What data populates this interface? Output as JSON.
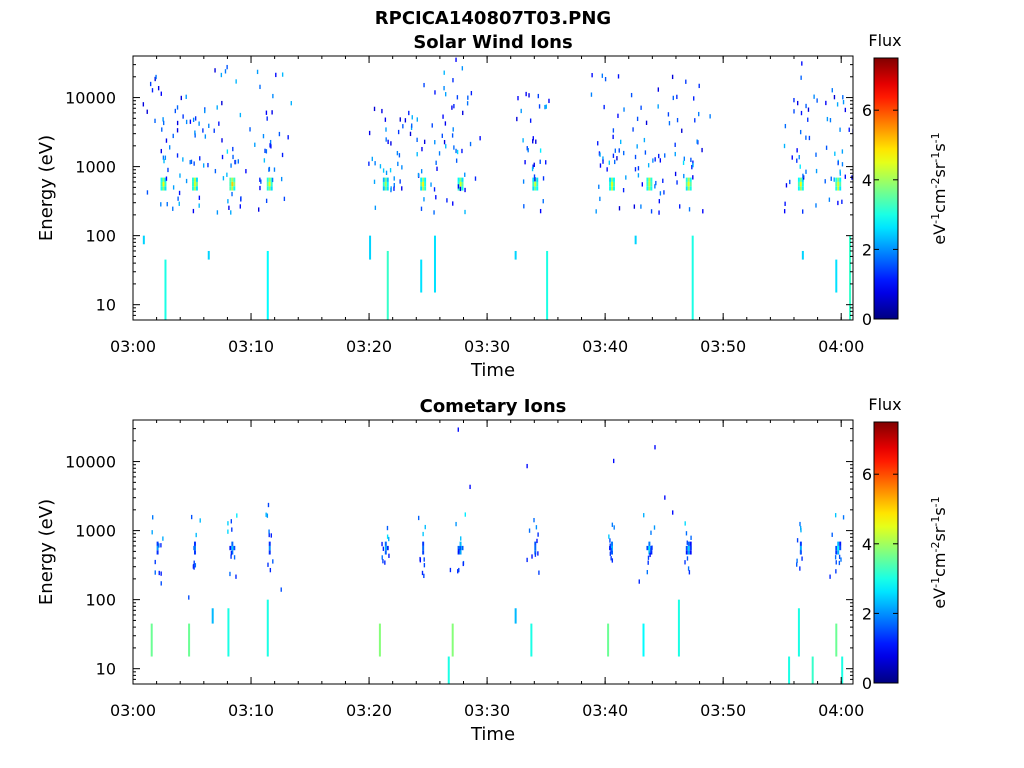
{
  "figure_title": "RPCICA140807T03.PNG",
  "chart_data": [
    {
      "type": "heatmap",
      "title": "Solar Wind Ions",
      "xlabel": "Time",
      "ylabel": "Energy (eV)",
      "x_ticks": [
        "03:00",
        "03:10",
        "03:20",
        "03:30",
        "03:40",
        "03:50",
        "04:00"
      ],
      "xlim": [
        "03:00",
        "04:01"
      ],
      "y_scale": "log",
      "y_ticks": [
        "10",
        "100",
        "1000",
        "10000"
      ],
      "ylim": [
        6,
        40000
      ],
      "colorbar": {
        "title": "Flux",
        "label": "eV-1cm-2sr-1s-1",
        "ticks": [
          "0",
          "2",
          "4",
          "6"
        ],
        "range": [
          0,
          7.5
        ],
        "colormap": "jet"
      },
      "clusters": [
        {
          "t": "03:02:30",
          "flux": 4.5,
          "emax": 20000
        },
        {
          "t": "03:05:10",
          "flux": 4.5,
          "emax": 12000
        },
        {
          "t": "03:08:20",
          "flux": 4.8,
          "emax": 28000
        },
        {
          "t": "03:11:30",
          "flux": 4.5,
          "emax": 22000
        },
        {
          "t": "03:21:20",
          "flux": 4.2,
          "emax": 6500
        },
        {
          "t": "03:24:30",
          "flux": 4.5,
          "emax": 15000
        },
        {
          "t": "03:27:40",
          "flux": 4.5,
          "emax": 36000
        },
        {
          "t": "03:34:00",
          "flux": 4.3,
          "emax": 11000
        },
        {
          "t": "03:40:30",
          "flux": 4.5,
          "emax": 20000
        },
        {
          "t": "03:43:40",
          "flux": 4.5,
          "emax": 38000
        },
        {
          "t": "03:47:00",
          "flux": 4.6,
          "emax": 20000
        },
        {
          "t": "03:56:30",
          "flux": 4.5,
          "emax": 30000
        },
        {
          "t": "03:59:40",
          "flux": 4.6,
          "emax": 12000
        }
      ],
      "low_energy_bursts": [
        {
          "t": "03:00:50",
          "e1": 75,
          "e2": 100,
          "flux": 2.5
        },
        {
          "t": "03:02:40",
          "e1": 6,
          "e2": 45,
          "flux": 3.0
        },
        {
          "t": "03:06:20",
          "e1": 45,
          "e2": 60,
          "flux": 2.5
        },
        {
          "t": "03:11:20",
          "e1": 6,
          "e2": 60,
          "flux": 2.8
        },
        {
          "t": "03:20:00",
          "e1": 45,
          "e2": 100,
          "flux": 2.5
        },
        {
          "t": "03:21:30",
          "e1": 6,
          "e2": 60,
          "flux": 3.2
        },
        {
          "t": "03:24:20",
          "e1": 15,
          "e2": 45,
          "flux": 2.6
        },
        {
          "t": "03:25:30",
          "e1": 15,
          "e2": 100,
          "flux": 2.6
        },
        {
          "t": "03:32:20",
          "e1": 45,
          "e2": 60,
          "flux": 2.5
        },
        {
          "t": "03:35:00",
          "e1": 6,
          "e2": 60,
          "flux": 3.0
        },
        {
          "t": "03:42:30",
          "e1": 75,
          "e2": 100,
          "flux": 2.5
        },
        {
          "t": "03:47:20",
          "e1": 6,
          "e2": 100,
          "flux": 3.0
        },
        {
          "t": "03:56:40",
          "e1": 45,
          "e2": 60,
          "flux": 2.5
        },
        {
          "t": "03:59:30",
          "e1": 15,
          "e2": 45,
          "flux": 2.6
        },
        {
          "t": "04:00:40",
          "e1": 6,
          "e2": 100,
          "flux": 3.2
        }
      ]
    },
    {
      "type": "heatmap",
      "title": "Cometary Ions",
      "xlabel": "Time",
      "ylabel": "Energy (eV)",
      "x_ticks": [
        "03:00",
        "03:10",
        "03:20",
        "03:30",
        "03:40",
        "03:50",
        "04:00"
      ],
      "xlim": [
        "03:00",
        "04:01"
      ],
      "y_scale": "log",
      "y_ticks": [
        "10",
        "100",
        "1000",
        "10000"
      ],
      "ylim": [
        6,
        40000
      ],
      "colorbar": {
        "title": "Flux",
        "label": "eV-1cm-2sr-1s-1",
        "ticks": [
          "0",
          "2",
          "4",
          "6"
        ],
        "range": [
          0,
          7.5
        ],
        "colormap": "jet"
      },
      "clusters": [
        {
          "t": "03:02:00",
          "flux": 2.0,
          "emax": 700
        },
        {
          "t": "03:05:10",
          "flux": 2.0,
          "emax": 700
        },
        {
          "t": "03:08:20",
          "flux": 2.4,
          "emax": 1800
        },
        {
          "t": "03:11:30",
          "flux": 2.0,
          "emax": 2200
        },
        {
          "t": "03:21:20",
          "flux": 2.4,
          "emax": 700
        },
        {
          "t": "03:24:30",
          "flux": 2.0,
          "emax": 700
        },
        {
          "t": "03:27:40",
          "flux": 2.8,
          "emax": 700
        },
        {
          "t": "03:34:00",
          "flux": 2.0,
          "emax": 1200
        },
        {
          "t": "03:40:30",
          "flux": 2.2,
          "emax": 700
        },
        {
          "t": "03:43:40",
          "flux": 2.6,
          "emax": 700
        },
        {
          "t": "03:47:00",
          "flux": 2.5,
          "emax": 700
        },
        {
          "t": "03:56:30",
          "flux": 2.0,
          "emax": 700
        },
        {
          "t": "03:59:40",
          "flux": 2.8,
          "emax": 900
        }
      ],
      "points": [
        {
          "t": "03:27:30",
          "e": 27000,
          "flux": 1.0
        },
        {
          "t": "03:28:30",
          "e": 4000,
          "flux": 1.0
        },
        {
          "t": "03:33:20",
          "e": 8000,
          "flux": 1.0
        },
        {
          "t": "03:40:40",
          "e": 9500,
          "flux": 1.0
        },
        {
          "t": "03:44:10",
          "e": 15000,
          "flux": 1.0
        },
        {
          "t": "03:45:00",
          "e": 2800,
          "flux": 1.0
        },
        {
          "t": "03:45:40",
          "e": 1700,
          "flux": 1.0
        },
        {
          "t": "03:02:20",
          "e": 160,
          "flux": 1.5
        },
        {
          "t": "03:04:40",
          "e": 100,
          "flux": 1.5
        },
        {
          "t": "03:08:40",
          "e": 200,
          "flux": 1.2
        },
        {
          "t": "03:12:30",
          "e": 130,
          "flux": 1.5
        },
        {
          "t": "03:26:50",
          "e": 250,
          "flux": 1.2
        },
        {
          "t": "03:33:20",
          "e": 350,
          "flux": 1.2
        },
        {
          "t": "03:42:50",
          "e": 170,
          "flux": 1.2
        },
        {
          "t": "03:59:00",
          "e": 200,
          "flux": 1.2
        }
      ],
      "low_energy_bursts": [
        {
          "t": "03:01:30",
          "e1": 15,
          "e2": 45,
          "flux": 3.6
        },
        {
          "t": "03:04:40",
          "e1": 15,
          "e2": 45,
          "flux": 3.6
        },
        {
          "t": "03:06:40",
          "e1": 45,
          "e2": 75,
          "flux": 2.3
        },
        {
          "t": "03:08:00",
          "e1": 15,
          "e2": 75,
          "flux": 3.0
        },
        {
          "t": "03:11:20",
          "e1": 15,
          "e2": 100,
          "flux": 3.0
        },
        {
          "t": "03:20:50",
          "e1": 15,
          "e2": 45,
          "flux": 3.8
        },
        {
          "t": "03:27:00",
          "e1": 15,
          "e2": 45,
          "flux": 3.8
        },
        {
          "t": "03:26:40",
          "e1": 6,
          "e2": 15,
          "flux": 3.0
        },
        {
          "t": "03:32:20",
          "e1": 45,
          "e2": 75,
          "flux": 2.3
        },
        {
          "t": "03:33:40",
          "e1": 15,
          "e2": 45,
          "flux": 3.0
        },
        {
          "t": "03:40:10",
          "e1": 15,
          "e2": 45,
          "flux": 3.6
        },
        {
          "t": "03:43:10",
          "e1": 15,
          "e2": 45,
          "flux": 2.8
        },
        {
          "t": "03:46:10",
          "e1": 15,
          "e2": 100,
          "flux": 3.0
        },
        {
          "t": "03:55:30",
          "e1": 6,
          "e2": 15,
          "flux": 3.0
        },
        {
          "t": "03:56:20",
          "e1": 15,
          "e2": 75,
          "flux": 3.0
        },
        {
          "t": "03:57:30",
          "e1": 6,
          "e2": 15,
          "flux": 3.2
        },
        {
          "t": "03:59:30",
          "e1": 15,
          "e2": 45,
          "flux": 3.6
        },
        {
          "t": "04:00:00",
          "e1": 6,
          "e2": 15,
          "flux": 3.0
        }
      ]
    }
  ]
}
